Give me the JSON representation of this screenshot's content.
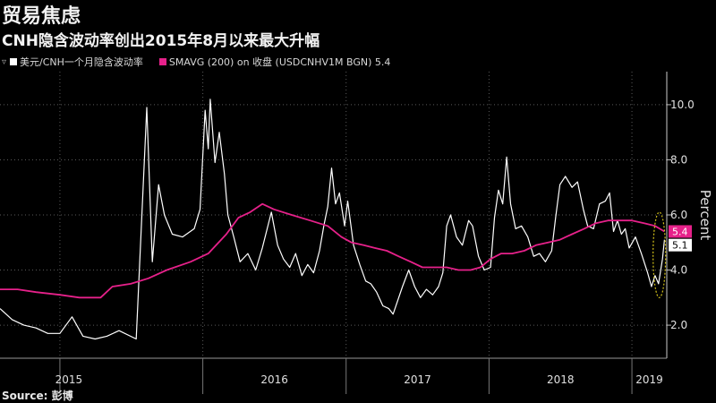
{
  "title": "贸易焦虑",
  "subtitle": "CNH隐含波动率创出2015年8月以来最大升幅",
  "legend": {
    "icon": "dropdown-icon",
    "series1": "美元/CNH一个月隐含波动率",
    "series2": "SMAVG (200)  on 收盘 (USDCNHV1M BGN) 5.4"
  },
  "source": "Source: 彭博",
  "colors": {
    "background": "#000000",
    "series1": "#ffffff",
    "series2": "#e6218a",
    "highlight_ellipse": "#d4c21a"
  },
  "chart_data": {
    "type": "line",
    "ylabel": "Percent",
    "ylim": [
      0.8,
      11.2
    ],
    "yticks": [
      "2.0",
      "4.0",
      "6.0",
      "8.0",
      "10.0"
    ],
    "xlim": [
      "2014-08-01",
      "2019-03-31"
    ],
    "x_year_labels": [
      {
        "label": "2015",
        "date": "2015-01-01"
      },
      {
        "label": "2016",
        "date": "2016-01-01"
      },
      {
        "label": "2017",
        "date": "2017-01-01"
      },
      {
        "label": "2018",
        "date": "2018-01-01"
      },
      {
        "label": "2019",
        "date": "2019-01-01"
      }
    ],
    "grid": true,
    "series": [
      {
        "name": "美元/CNH一个月隐含波动率",
        "color": "#ffffff",
        "points": [
          [
            "2014-08-01",
            2.6
          ],
          [
            "2014-09-01",
            2.2
          ],
          [
            "2014-10-01",
            2.0
          ],
          [
            "2014-11-01",
            1.9
          ],
          [
            "2014-12-01",
            1.7
          ],
          [
            "2015-01-01",
            1.7
          ],
          [
            "2015-02-01",
            2.3
          ],
          [
            "2015-03-01",
            1.6
          ],
          [
            "2015-04-01",
            1.5
          ],
          [
            "2015-05-01",
            1.6
          ],
          [
            "2015-06-01",
            1.8
          ],
          [
            "2015-07-15",
            1.5
          ],
          [
            "2015-08-11",
            9.9
          ],
          [
            "2015-08-25",
            4.3
          ],
          [
            "2015-09-10",
            7.1
          ],
          [
            "2015-09-25",
            6.0
          ],
          [
            "2015-10-15",
            5.3
          ],
          [
            "2015-11-10",
            5.2
          ],
          [
            "2015-12-10",
            5.5
          ],
          [
            "2015-12-25",
            6.2
          ],
          [
            "2016-01-07",
            9.8
          ],
          [
            "2016-01-15",
            8.4
          ],
          [
            "2016-01-20",
            10.2
          ],
          [
            "2016-02-01",
            7.9
          ],
          [
            "2016-02-12",
            9.0
          ],
          [
            "2016-02-25",
            7.5
          ],
          [
            "2016-03-05",
            6.0
          ],
          [
            "2016-03-20",
            5.2
          ],
          [
            "2016-04-05",
            4.3
          ],
          [
            "2016-04-25",
            4.6
          ],
          [
            "2016-05-15",
            4.0
          ],
          [
            "2016-06-01",
            4.8
          ],
          [
            "2016-06-24",
            6.1
          ],
          [
            "2016-07-10",
            4.9
          ],
          [
            "2016-07-25",
            4.4
          ],
          [
            "2016-08-10",
            4.1
          ],
          [
            "2016-08-25",
            4.6
          ],
          [
            "2016-09-10",
            3.8
          ],
          [
            "2016-09-25",
            4.2
          ],
          [
            "2016-10-10",
            3.9
          ],
          [
            "2016-10-25",
            4.7
          ],
          [
            "2016-11-05",
            5.6
          ],
          [
            "2016-11-15",
            6.3
          ],
          [
            "2016-11-25",
            7.7
          ],
          [
            "2016-12-05",
            6.4
          ],
          [
            "2016-12-15",
            6.8
          ],
          [
            "2016-12-28",
            5.6
          ],
          [
            "2017-01-05",
            6.5
          ],
          [
            "2017-01-20",
            4.9
          ],
          [
            "2017-02-05",
            4.2
          ],
          [
            "2017-02-20",
            3.6
          ],
          [
            "2017-03-05",
            3.5
          ],
          [
            "2017-03-20",
            3.2
          ],
          [
            "2017-04-05",
            2.7
          ],
          [
            "2017-04-20",
            2.6
          ],
          [
            "2017-05-01",
            2.4
          ],
          [
            "2017-05-25",
            3.4
          ],
          [
            "2017-06-10",
            4.0
          ],
          [
            "2017-06-25",
            3.4
          ],
          [
            "2017-07-10",
            3.0
          ],
          [
            "2017-07-25",
            3.3
          ],
          [
            "2017-08-10",
            3.1
          ],
          [
            "2017-08-25",
            3.4
          ],
          [
            "2017-09-05",
            3.9
          ],
          [
            "2017-09-15",
            5.6
          ],
          [
            "2017-09-25",
            6.0
          ],
          [
            "2017-10-10",
            5.2
          ],
          [
            "2017-10-25",
            4.9
          ],
          [
            "2017-11-10",
            5.8
          ],
          [
            "2017-11-20",
            5.6
          ],
          [
            "2017-12-05",
            4.5
          ],
          [
            "2017-12-20",
            4.0
          ],
          [
            "2018-01-05",
            4.1
          ],
          [
            "2018-01-15",
            5.9
          ],
          [
            "2018-01-25",
            6.9
          ],
          [
            "2018-02-05",
            6.4
          ],
          [
            "2018-02-15",
            8.1
          ],
          [
            "2018-02-25",
            6.4
          ],
          [
            "2018-03-10",
            5.5
          ],
          [
            "2018-03-25",
            5.6
          ],
          [
            "2018-04-10",
            5.2
          ],
          [
            "2018-04-25",
            4.5
          ],
          [
            "2018-05-10",
            4.6
          ],
          [
            "2018-05-25",
            4.3
          ],
          [
            "2018-06-10",
            4.7
          ],
          [
            "2018-06-20",
            5.9
          ],
          [
            "2018-07-01",
            7.1
          ],
          [
            "2018-07-15",
            7.4
          ],
          [
            "2018-08-01",
            7.0
          ],
          [
            "2018-08-15",
            7.2
          ],
          [
            "2018-08-30",
            6.2
          ],
          [
            "2018-09-10",
            5.6
          ],
          [
            "2018-09-25",
            5.5
          ],
          [
            "2018-10-10",
            6.4
          ],
          [
            "2018-10-25",
            6.5
          ],
          [
            "2018-11-05",
            6.8
          ],
          [
            "2018-11-15",
            5.4
          ],
          [
            "2018-11-25",
            5.8
          ],
          [
            "2018-12-05",
            5.3
          ],
          [
            "2018-12-15",
            5.5
          ],
          [
            "2018-12-25",
            4.8
          ],
          [
            "2019-01-10",
            5.2
          ],
          [
            "2019-01-25",
            4.6
          ],
          [
            "2019-02-10",
            3.9
          ],
          [
            "2019-02-20",
            3.4
          ],
          [
            "2019-03-01",
            3.8
          ],
          [
            "2019-03-10",
            3.5
          ],
          [
            "2019-03-20",
            4.4
          ],
          [
            "2019-03-25",
            5.1
          ]
        ],
        "last_value": "5.1"
      },
      {
        "name": "SMAVG (200)  on 收盘 (USDCNHV1M BGN)",
        "color": "#e6218a",
        "points": [
          [
            "2014-08-01",
            3.3
          ],
          [
            "2014-09-15",
            3.3
          ],
          [
            "2014-11-01",
            3.2
          ],
          [
            "2015-01-01",
            3.1
          ],
          [
            "2015-02-20",
            3.0
          ],
          [
            "2015-04-15",
            3.0
          ],
          [
            "2015-05-15",
            3.4
          ],
          [
            "2015-07-01",
            3.5
          ],
          [
            "2015-08-15",
            3.7
          ],
          [
            "2015-10-01",
            4.0
          ],
          [
            "2015-12-01",
            4.3
          ],
          [
            "2016-01-15",
            4.6
          ],
          [
            "2016-03-01",
            5.3
          ],
          [
            "2016-04-01",
            5.9
          ],
          [
            "2016-05-01",
            6.1
          ],
          [
            "2016-06-01",
            6.4
          ],
          [
            "2016-07-01",
            6.2
          ],
          [
            "2016-08-15",
            6.0
          ],
          [
            "2016-10-01",
            5.8
          ],
          [
            "2016-11-15",
            5.6
          ],
          [
            "2016-12-20",
            5.2
          ],
          [
            "2017-01-15",
            5.0
          ],
          [
            "2017-02-15",
            4.9
          ],
          [
            "2017-03-15",
            4.8
          ],
          [
            "2017-04-15",
            4.7
          ],
          [
            "2017-05-15",
            4.5
          ],
          [
            "2017-06-15",
            4.3
          ],
          [
            "2017-07-15",
            4.1
          ],
          [
            "2017-08-15",
            4.1
          ],
          [
            "2017-09-15",
            4.1
          ],
          [
            "2017-10-15",
            4.0
          ],
          [
            "2017-11-15",
            4.0
          ],
          [
            "2017-12-10",
            4.1
          ],
          [
            "2018-01-05",
            4.4
          ],
          [
            "2018-02-01",
            4.6
          ],
          [
            "2018-03-01",
            4.6
          ],
          [
            "2018-04-01",
            4.7
          ],
          [
            "2018-05-01",
            4.9
          ],
          [
            "2018-06-01",
            5.0
          ],
          [
            "2018-07-01",
            5.1
          ],
          [
            "2018-08-01",
            5.3
          ],
          [
            "2018-09-01",
            5.5
          ],
          [
            "2018-10-01",
            5.7
          ],
          [
            "2018-11-01",
            5.8
          ],
          [
            "2018-12-01",
            5.8
          ],
          [
            "2019-01-01",
            5.8
          ],
          [
            "2019-02-01",
            5.7
          ],
          [
            "2019-03-01",
            5.6
          ],
          [
            "2019-03-25",
            5.4
          ]
        ],
        "last_value": "5.4"
      }
    ],
    "annotations": [
      {
        "type": "ellipse",
        "date": "2019-03-12",
        "y_range": [
          3.0,
          6.1
        ],
        "color": "#d4c21a"
      }
    ]
  }
}
